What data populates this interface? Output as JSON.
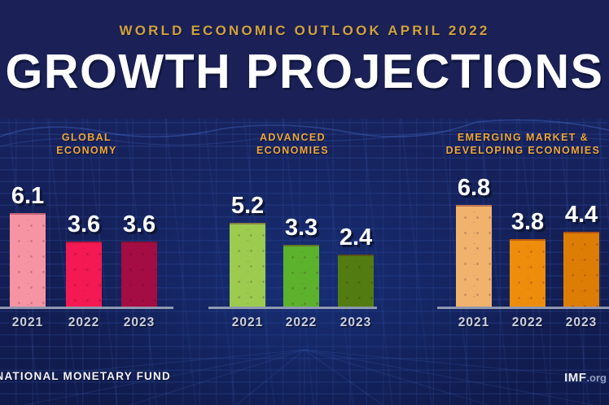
{
  "header": {
    "subtitle": "WORLD ECONOMIC OUTLOOK APRIL 2022",
    "title": "GROWTH PROJECTIONS"
  },
  "footer": {
    "left": "INTERNATIONAL MONETARY FUND",
    "brand": "IMF",
    "brand_suffix": ".org"
  },
  "colors": {
    "background": "#1b2157",
    "gold": "#eca73b",
    "axis": "#9aa3b8",
    "year_label": "#cbd0dd",
    "value_label": "#ffffff"
  },
  "chart_data": [
    {
      "type": "bar",
      "title_lines": [
        "GLOBAL",
        "ECONOMY"
      ],
      "categories": [
        "2021",
        "2022",
        "2023"
      ],
      "values": [
        6.1,
        3.6,
        3.6
      ],
      "unit": "percent growth",
      "bar_colors": [
        "#f794a4",
        "#f41952",
        "#a40d43"
      ],
      "grid": false,
      "legend": "none"
    },
    {
      "type": "bar",
      "title_lines": [
        "ADVANCED",
        "ECONOMIES"
      ],
      "categories": [
        "2021",
        "2022",
        "2023"
      ],
      "values": [
        5.2,
        3.3,
        2.4
      ],
      "unit": "percent growth",
      "bar_colors": [
        "#9ccb50",
        "#5cb22d",
        "#527c12"
      ],
      "grid": false,
      "legend": "none"
    },
    {
      "type": "bar",
      "title_lines": [
        "EMERGING MARKET &",
        "DEVELOPING ECONOMIES"
      ],
      "categories": [
        "2021",
        "2022",
        "2023"
      ],
      "values": [
        6.8,
        3.8,
        4.4
      ],
      "unit": "percent growth",
      "bar_colors": [
        "#f0b26c",
        "#ee8d0c",
        "#dd7d06"
      ],
      "grid": false,
      "legend": "none"
    }
  ]
}
